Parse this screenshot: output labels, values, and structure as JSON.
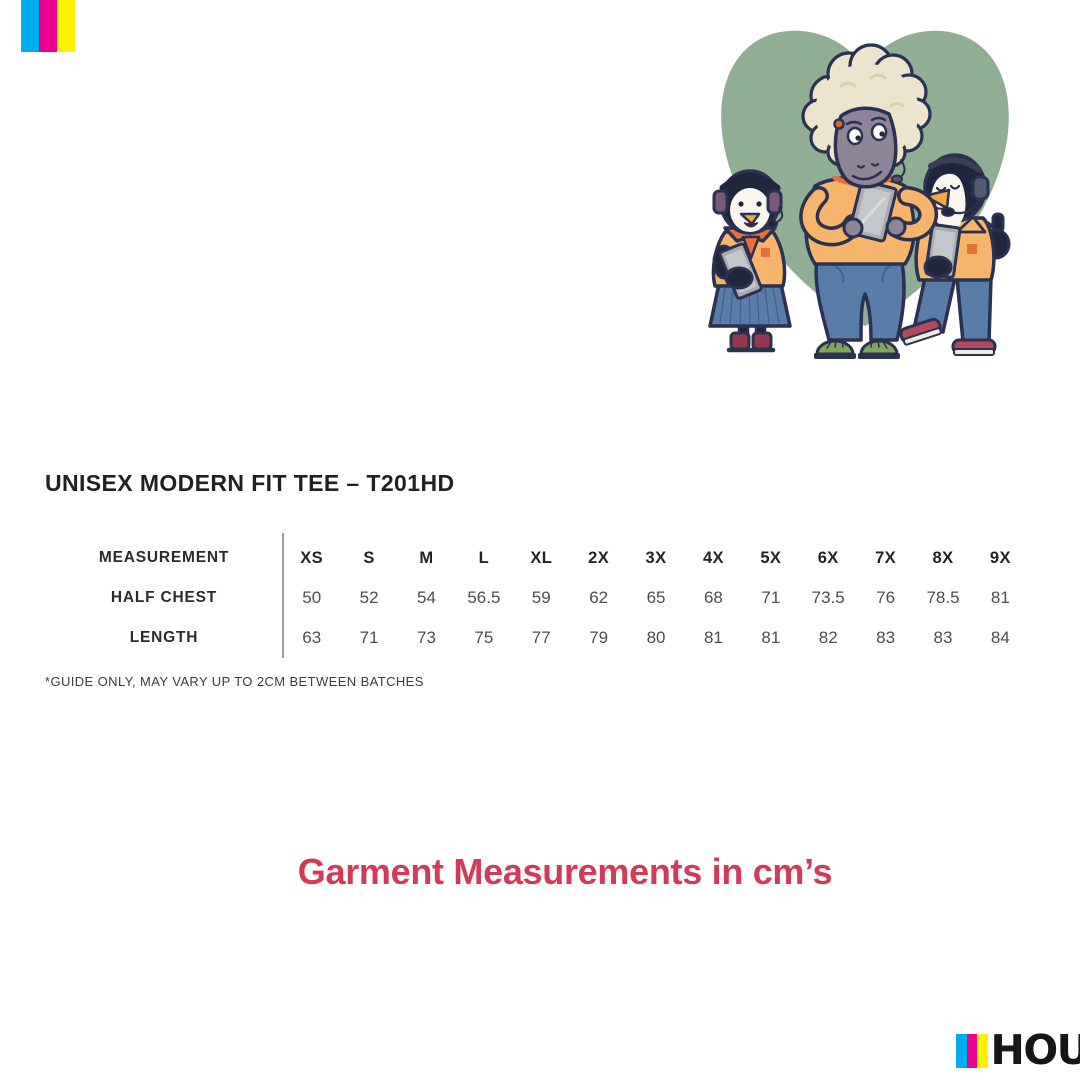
{
  "product": {
    "title": "UNISEX MODERN FIT TEE – T201HD"
  },
  "size_table": {
    "header_label": "MEASUREMENT",
    "columns": [
      "XS",
      "S",
      "M",
      "L",
      "XL",
      "2X",
      "3X",
      "4X",
      "5X",
      "6X",
      "7X",
      "8X",
      "9X"
    ],
    "rows": [
      {
        "label": "HALF CHEST",
        "values": [
          "50",
          "52",
          "54",
          "56.5",
          "59",
          "62",
          "65",
          "68",
          "71",
          "73.5",
          "76",
          "78.5",
          "81"
        ]
      },
      {
        "label": "LENGTH",
        "values": [
          "63",
          "71",
          "73",
          "75",
          "77",
          "79",
          "80",
          "81",
          "81",
          "82",
          "83",
          "83",
          "84"
        ]
      }
    ],
    "footnote": "*GUIDE ONLY, MAY VARY UP TO 2CM BETWEEN BATCHES"
  },
  "caption": {
    "text": "Garment Measurements in cm’s",
    "color": "#d23b57"
  },
  "print_marks": {
    "colors": [
      "#00aeef",
      "#ec008c",
      "#fff200"
    ]
  },
  "logo": {
    "text": "HOU",
    "bar_colors": [
      "#00aeef",
      "#ec008c",
      "#fff200"
    ]
  },
  "illustration": {
    "name": "support-team-characters",
    "description": "Three cartoon characters with headsets holding tablets on a sage-green blob: a small penguin in an orange sweater, neckerchief and blue pleated skirt; a sheep with cream curly wool in an orange tee and blue jeans; a penguin in an orange collared shirt and jeans giving a thumbs up",
    "palette": {
      "blob_green": "#8fae94",
      "outline_navy": "#2b3150",
      "shirt_orange": "#f7b56b",
      "accent_orange": "#e8703a",
      "jeans_blue": "#5a7ca8",
      "wool_cream": "#ede4cd",
      "skin_grey": "#8e8698",
      "tablet_grey": "#a9adb3",
      "boot_maroon": "#93384e",
      "sandal_green": "#7fa65b",
      "beak_orange": "#f3a93c"
    }
  }
}
